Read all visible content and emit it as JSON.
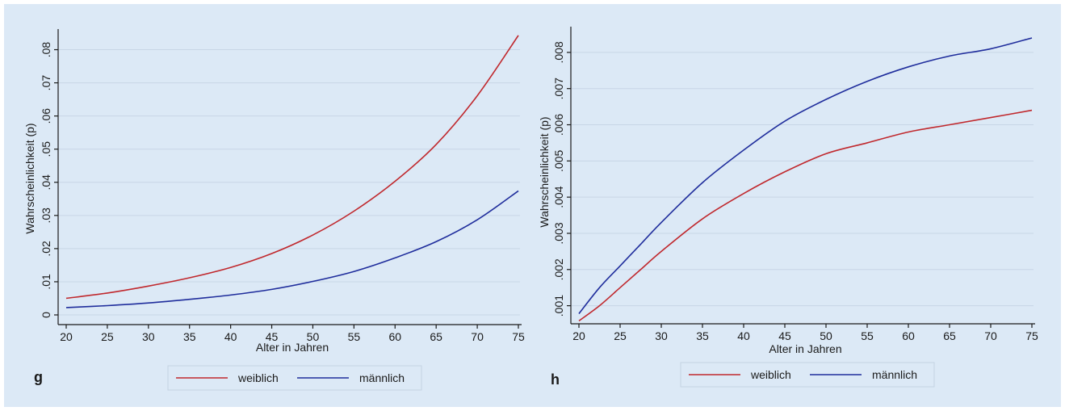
{
  "chart_data": [
    {
      "type": "line",
      "panel_label": "g",
      "xlabel": "Alter in Jahren",
      "ylabel": "Wahrscheinlichkeit (p)",
      "xlim": [
        20,
        75
      ],
      "ylim": [
        0,
        0.085
      ],
      "xticks": [
        20,
        25,
        30,
        35,
        40,
        45,
        50,
        55,
        60,
        65,
        70,
        75
      ],
      "yticks": [
        0,
        0.01,
        0.02,
        0.03,
        0.04,
        0.05,
        0.06,
        0.07,
        0.08
      ],
      "ytick_labels": [
        "0",
        ".01",
        ".02",
        ".03",
        ".04",
        ".05",
        ".06",
        ".07",
        ".08"
      ],
      "grid": true,
      "legend_position": "bottom",
      "x": [
        20,
        25,
        30,
        35,
        40,
        45,
        50,
        55,
        60,
        65,
        70,
        75
      ],
      "series": [
        {
          "name": "weiblich",
          "color": "#c0282d",
          "values": [
            0.005,
            0.0066,
            0.0087,
            0.0112,
            0.0143,
            0.0185,
            0.0241,
            0.0313,
            0.0403,
            0.0514,
            0.0661,
            0.0843
          ]
        },
        {
          "name": "männlich",
          "color": "#1f2d9c",
          "values": [
            0.0022,
            0.0028,
            0.0036,
            0.0047,
            0.006,
            0.0077,
            0.0101,
            0.0131,
            0.0172,
            0.0221,
            0.0287,
            0.0374
          ]
        }
      ]
    },
    {
      "type": "line",
      "panel_label": "h",
      "xlabel": "Alter in Jahren",
      "ylabel": "Wahrscheinlichkeit (p)",
      "xlim": [
        20,
        75
      ],
      "ylim": [
        0.0005,
        0.0086
      ],
      "xticks": [
        20,
        25,
        30,
        35,
        40,
        45,
        50,
        55,
        60,
        65,
        70,
        75
      ],
      "yticks": [
        0.001,
        0.002,
        0.003,
        0.004,
        0.005,
        0.006,
        0.007,
        0.008
      ],
      "ytick_labels": [
        ".001",
        ".002",
        ".003",
        ".004",
        ".005",
        ".006",
        ".007",
        ".008"
      ],
      "grid": true,
      "legend_position": "bottom",
      "x": [
        20,
        22.5,
        25,
        27.5,
        30,
        35,
        40,
        45,
        50,
        55,
        60,
        65,
        70,
        75
      ],
      "series": [
        {
          "name": "weiblich",
          "color": "#c0282d",
          "values": [
            0.00058,
            0.001,
            0.0015,
            0.002,
            0.0025,
            0.0034,
            0.0041,
            0.0047,
            0.0052,
            0.0055,
            0.0058,
            0.006,
            0.0062,
            0.0064
          ]
        },
        {
          "name": "männlich",
          "color": "#1f2d9c",
          "values": [
            0.00078,
            0.0015,
            0.0021,
            0.0027,
            0.0033,
            0.0044,
            0.0053,
            0.0061,
            0.0067,
            0.0072,
            0.0076,
            0.0079,
            0.0081,
            0.0084
          ]
        }
      ]
    }
  ]
}
